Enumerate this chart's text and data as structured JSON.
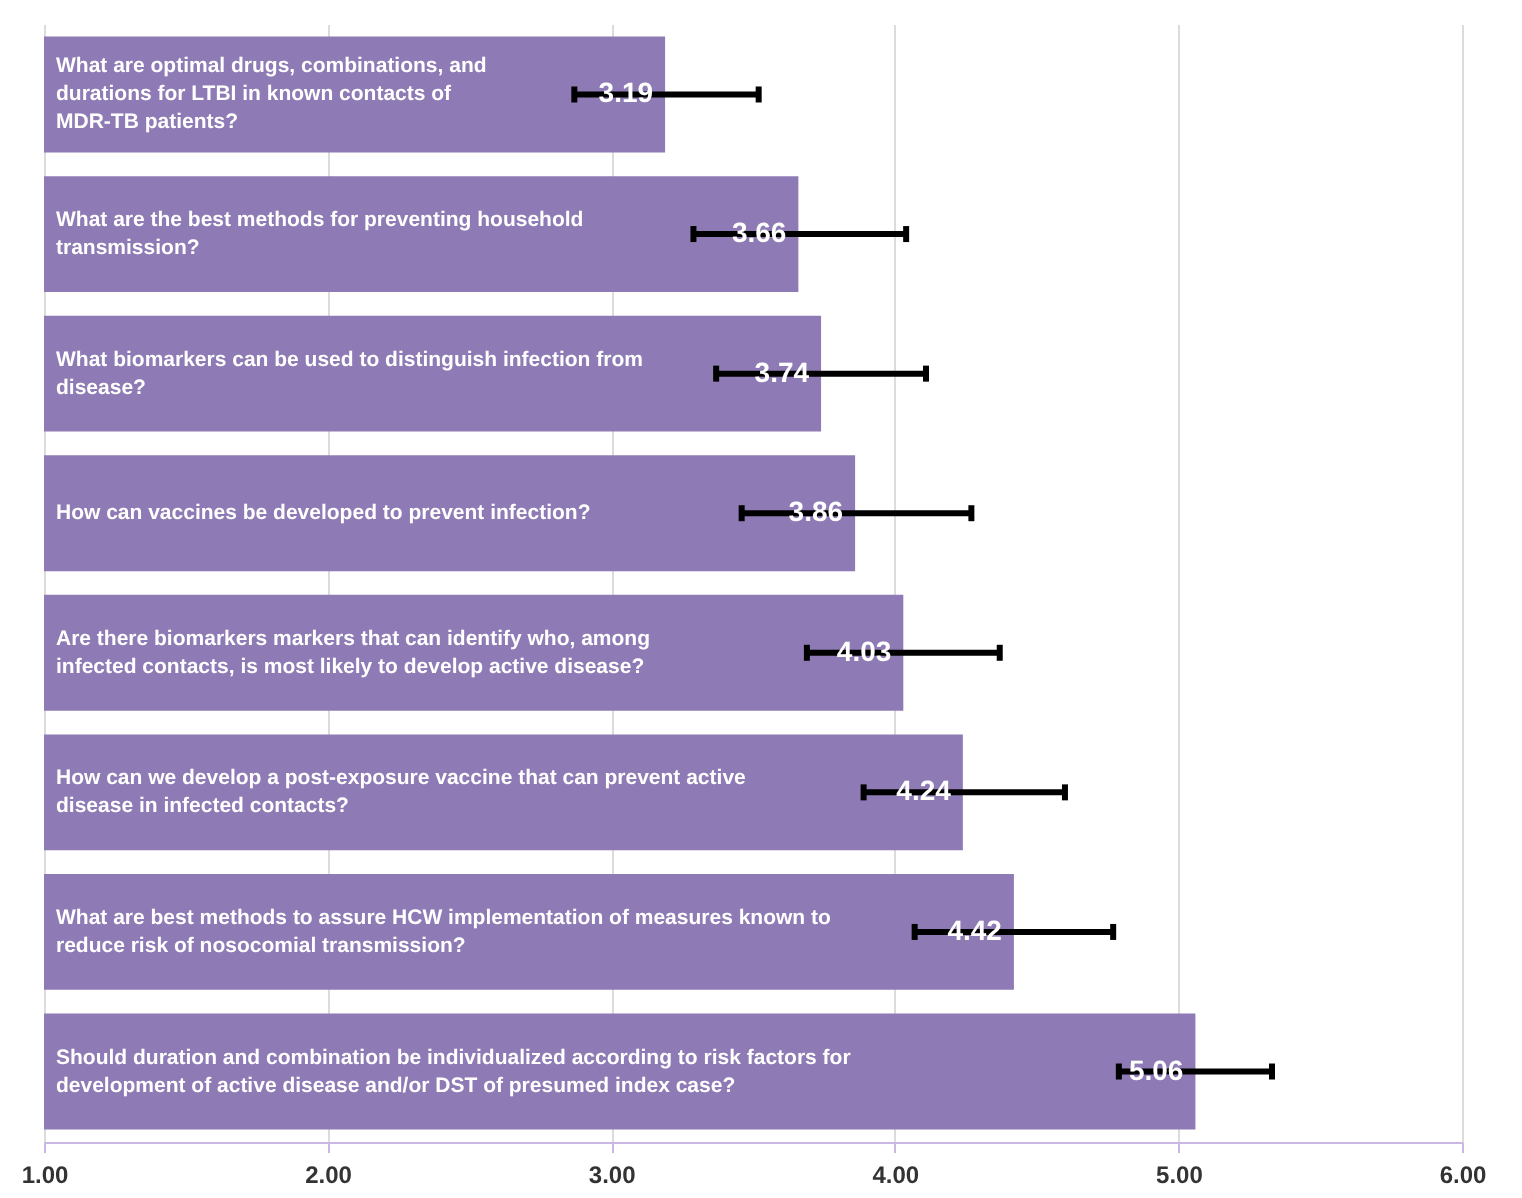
{
  "chart_data": {
    "type": "bar",
    "orientation": "horizontal",
    "tick_labels": "x",
    "grid": "x",
    "data_labels": true,
    "categories": [
      "What are optimal drugs, combinations, and durations for LTBI in known contacts of MDR-TB patients?",
      "What are the best methods for preventing household transmission?",
      "What biomarkers can be used to distinguish infection from disease?",
      "How can vaccines be developed to prevent infection?",
      "Are there biomarkers markers that can identify who, among infected contacts, is most likely to develop active disease?",
      "How can we develop a post-exposure vaccine that can prevent active disease in infected contacts?",
      "What are best methods to assure HCW implementation of measures known to reduce risk of nosocomial transmission?",
      "Should duration and combination be individualized according to risk factors for development of active disease and/or DST of presumed index case?"
    ],
    "values": [
      3.19,
      3.66,
      3.74,
      3.86,
      4.03,
      4.24,
      4.42,
      5.06
    ],
    "errors": [
      [
        2.87,
        3.52
      ],
      [
        3.29,
        4.04
      ],
      [
        3.37,
        4.11
      ],
      [
        3.46,
        4.27
      ],
      [
        3.69,
        4.37
      ],
      [
        3.89,
        4.6
      ],
      [
        4.07,
        4.77
      ],
      [
        4.79,
        5.33
      ]
    ],
    "color": "#8e7ab4",
    "xlim": [
      1,
      6
    ],
    "xticks": [
      {
        "value": 1,
        "label": "1.00"
      },
      {
        "value": 2,
        "label": "2.00"
      },
      {
        "value": 3,
        "label": "3.00"
      },
      {
        "value": 4,
        "label": "4.00"
      },
      {
        "value": 5,
        "label": "5.00"
      },
      {
        "value": 6,
        "label": "6.00"
      }
    ]
  }
}
